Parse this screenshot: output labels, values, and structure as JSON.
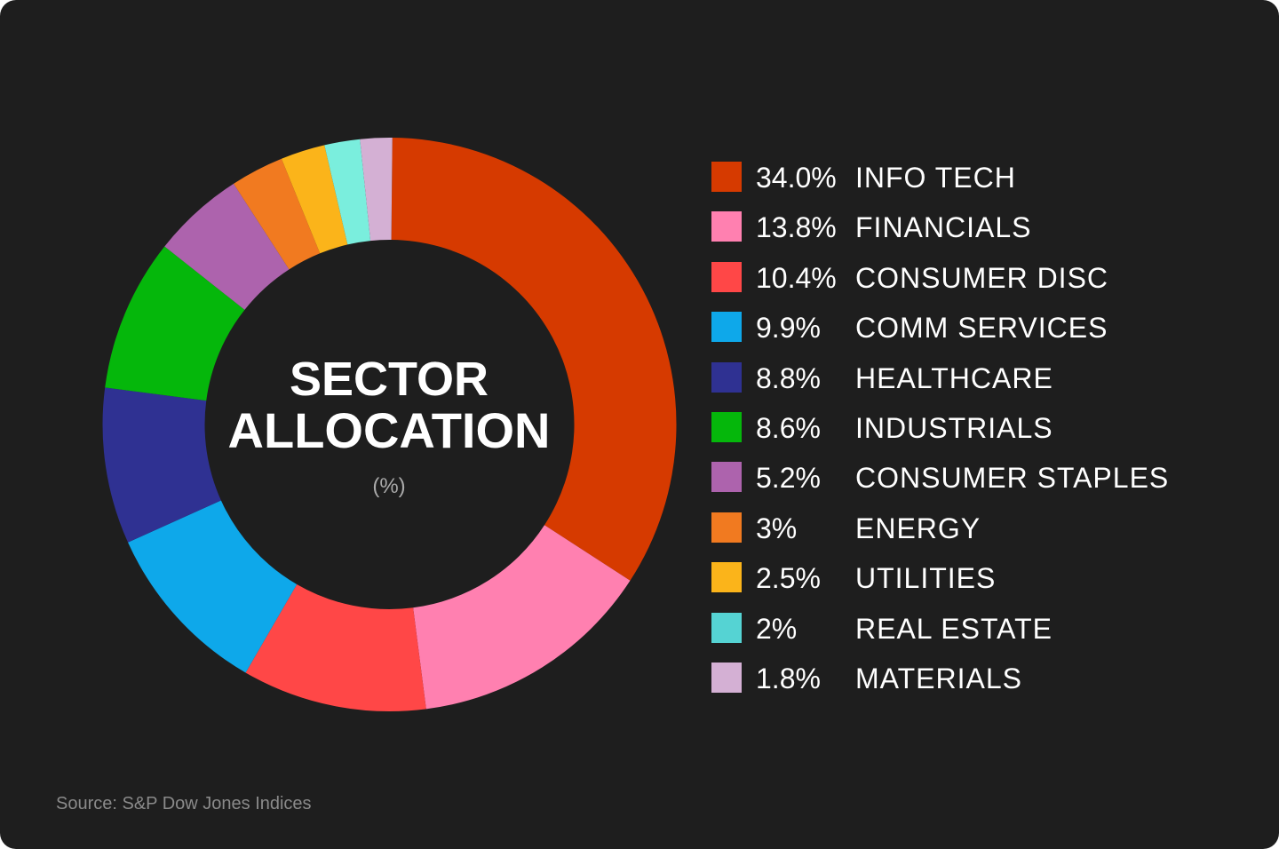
{
  "chart_data": {
    "type": "pie",
    "title": "SECTOR ALLOCATION",
    "title_line1": "SECTOR",
    "title_line2": "ALLOCATION",
    "unit": "(%)",
    "legend_position": "right",
    "categories": [
      "INFO TECH",
      "FINANCIALS",
      "CONSUMER DISC",
      "COMM SERVICES",
      "HEALTHCARE",
      "INDUSTRIALS",
      "CONSUMER STAPLES",
      "ENERGY",
      "UTILITIES",
      "REAL ESTATE",
      "MATERIALS"
    ],
    "values": [
      34.0,
      13.8,
      10.4,
      9.9,
      8.8,
      8.6,
      5.2,
      3,
      2.5,
      2,
      1.8
    ],
    "value_labels": [
      "34.0%",
      "13.8%",
      "10.4%",
      "9.9%",
      "8.8%",
      "8.6%",
      "5.2%",
      "3%",
      "2.5%",
      "2%",
      "1.8%"
    ],
    "colors": [
      "#D63A00",
      "#FF80B0",
      "#FF4747",
      "#0EA8EA",
      "#2F3192",
      "#05B70B",
      "#AD63AD",
      "#F17A20",
      "#FBB41A",
      "#55D3D3",
      "#D4B0D4"
    ],
    "slice_colors": [
      "#D63A00",
      "#FF80B0",
      "#FF4747",
      "#0EA8EA",
      "#2F3192",
      "#05B70B",
      "#AD63AD",
      "#F17A20",
      "#FBB41A",
      "#7AEEDD",
      "#D4B0D4"
    ]
  },
  "source": "Source: S&P Dow Jones Indices"
}
